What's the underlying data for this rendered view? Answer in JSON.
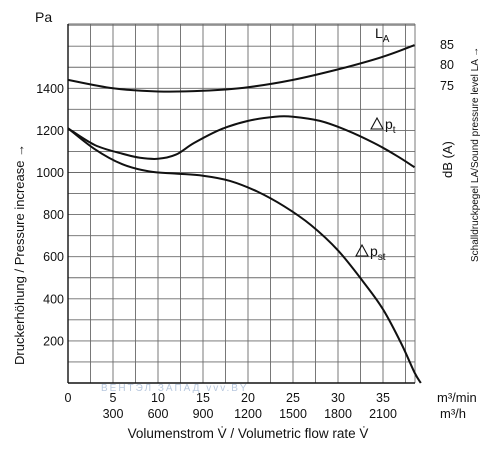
{
  "chart_data": {
    "type": "line",
    "y_unit": "Pa",
    "ylabel": "Druckerhöhung / Pressure increase →",
    "y_ticks": [
      200,
      400,
      600,
      800,
      1000,
      1200,
      1400
    ],
    "ylim": [
      0,
      1600
    ],
    "xlabel": "Volumenstrom V̇ / Volumetric flow rate V̇",
    "x_unit_1": "m³/min",
    "x_ticks_1": [
      0,
      5,
      10,
      15,
      20,
      25,
      30,
      35
    ],
    "x_unit_2": "m³/h",
    "x_ticks_2": [
      300,
      600,
      900,
      1200,
      1500,
      1800,
      2100
    ],
    "xlim": [
      0,
      40
    ],
    "right_axis_label": "Schalldruckpegel LA/Sound pressure level LA →",
    "right_axis_unit": "dB (A)",
    "right_ticks": [
      85,
      80,
      75
    ],
    "series": [
      {
        "name": "LA",
        "values": [
          [
            0,
            1440
          ],
          [
            5,
            1400
          ],
          [
            10,
            1385
          ],
          [
            15,
            1388
          ],
          [
            20,
            1405
          ],
          [
            25,
            1440
          ],
          [
            30,
            1490
          ],
          [
            35,
            1550
          ],
          [
            38.5,
            1605
          ]
        ]
      },
      {
        "name": "Δpt",
        "values": [
          [
            0,
            1210
          ],
          [
            3,
            1130
          ],
          [
            6,
            1090
          ],
          [
            8,
            1070
          ],
          [
            10,
            1065
          ],
          [
            12,
            1085
          ],
          [
            14,
            1140
          ],
          [
            17,
            1205
          ],
          [
            20,
            1245
          ],
          [
            23,
            1265
          ],
          [
            25,
            1265
          ],
          [
            28,
            1245
          ],
          [
            31,
            1200
          ],
          [
            34,
            1140
          ],
          [
            36.5,
            1080
          ],
          [
            38.5,
            1025
          ]
        ]
      },
      {
        "name": "Δpst",
        "values": [
          [
            0,
            1210
          ],
          [
            3,
            1110
          ],
          [
            6,
            1040
          ],
          [
            9,
            1005
          ],
          [
            12,
            995
          ],
          [
            15,
            985
          ],
          [
            18,
            960
          ],
          [
            21,
            910
          ],
          [
            24,
            840
          ],
          [
            27,
            750
          ],
          [
            30,
            630
          ],
          [
            33,
            470
          ],
          [
            35,
            350
          ],
          [
            37,
            190
          ],
          [
            38.5,
            50
          ],
          [
            39.2,
            0
          ]
        ]
      }
    ],
    "series_labels": [
      "LA",
      "Δpt",
      "Δpst"
    ]
  },
  "watermark": "ВЕНТЭЛ ЗАПАД vvv.BY"
}
